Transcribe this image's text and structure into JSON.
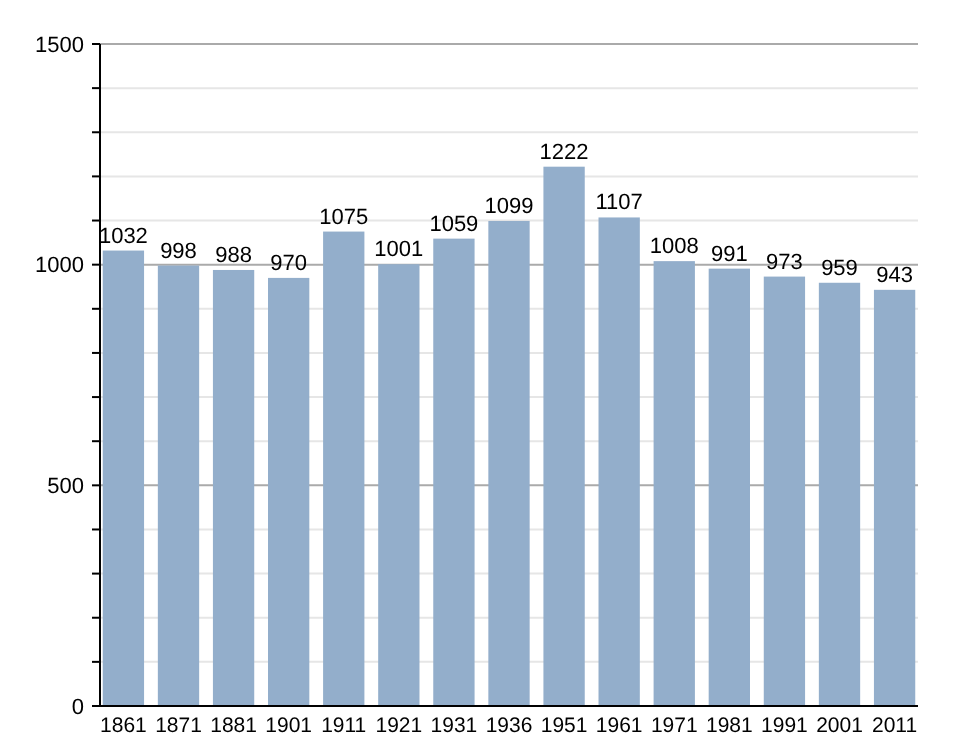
{
  "chart_data": {
    "type": "bar",
    "categories": [
      "1861",
      "1871",
      "1881",
      "1901",
      "1911",
      "1921",
      "1931",
      "1936",
      "1951",
      "1961",
      "1971",
      "1981",
      "1991",
      "2001",
      "2011"
    ],
    "values": [
      1032,
      998,
      988,
      970,
      1075,
      1001,
      1059,
      1099,
      1222,
      1107,
      1008,
      991,
      973,
      959,
      943
    ],
    "color": "#93aecb",
    "ylim": [
      0,
      1500
    ],
    "yticks": [
      0,
      {
        "value": 100,
        "label": null
      },
      {
        "value": 200,
        "label": null
      },
      {
        "value": 300,
        "label": null
      },
      {
        "value": 400,
        "label": null
      },
      500,
      {
        "value": 600,
        "label": null
      },
      {
        "value": 700,
        "label": null
      },
      {
        "value": 800,
        "label": null
      },
      {
        "value": 900,
        "label": null
      },
      1000,
      {
        "value": 1100,
        "label": null
      },
      {
        "value": 1200,
        "label": null
      },
      {
        "value": 1300,
        "label": null
      },
      {
        "value": 1400,
        "label": null
      },
      1500
    ],
    "grid": true,
    "data_labels": true
  }
}
